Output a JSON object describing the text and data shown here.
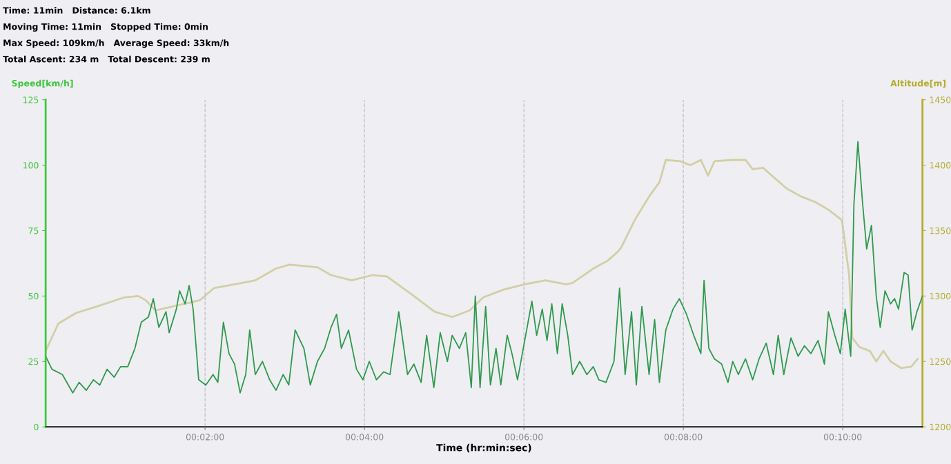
{
  "chart_data": {
    "type": "line",
    "annotations": [
      "Time: 11min   Distance: 6.1km",
      "Moving Time: 11min   Stopped Time: 0min",
      "Max Speed: 109km/h   Average Speed: 33km/h",
      "Total Ascent: 234 m   Total Descent: 239 m"
    ],
    "xlabel": "Time (hr:min:sec)",
    "ylabel": "Speed[km/h]",
    "y2label": "Altitude[m]",
    "xlim": [
      0,
      11
    ],
    "xticks": [
      {
        "value": 2,
        "label": "00:02:00"
      },
      {
        "value": 4,
        "label": "00:04:00"
      },
      {
        "value": 6,
        "label": "00:06:00"
      },
      {
        "value": 8,
        "label": "00:08:00"
      },
      {
        "value": 10,
        "label": "00:10:00"
      }
    ],
    "ylim": [
      0,
      125
    ],
    "yticks": [
      0,
      25,
      50,
      75,
      100,
      125
    ],
    "y2lim": [
      1200,
      1450
    ],
    "y2ticks": [
      1200,
      1250,
      1300,
      1350,
      1400,
      1450
    ],
    "grid": "x",
    "series": [
      {
        "color": "#d2cfa4",
        "axis": "y2",
        "x": [
          0,
          0.16,
          0.38,
          0.64,
          0.99,
          1.16,
          1.25,
          1.38,
          1.59,
          1.81,
          1.94,
          2.11,
          2.37,
          2.63,
          2.89,
          3.06,
          3.41,
          3.58,
          3.84,
          4.1,
          4.28,
          4.62,
          4.88,
          5.1,
          5.32,
          5.49,
          5.75,
          6.01,
          6.27,
          6.53,
          6.61,
          6.87,
          7.05,
          7.18,
          7.22,
          7.39,
          7.57,
          7.7,
          7.78,
          7.96,
          8.09,
          8.22,
          8.31,
          8.39,
          8.61,
          8.78,
          8.87,
          9.0,
          9.13,
          9.3,
          9.48,
          9.65,
          9.82,
          9.99,
          10.08,
          10.12,
          10.21,
          10.34,
          10.42,
          10.51,
          10.6,
          10.73,
          10.86,
          10.94
        ],
        "values": [
          1258,
          1279,
          1287,
          1292,
          1299,
          1300,
          1297,
          1289,
          1292,
          1295,
          1297,
          1306,
          1309,
          1312,
          1321,
          1324,
          1322,
          1316,
          1312,
          1316,
          1315,
          1300,
          1288,
          1284,
          1289,
          1299,
          1305,
          1309,
          1312,
          1309,
          1310,
          1321,
          1327,
          1334,
          1337,
          1358,
          1376,
          1387,
          1404,
          1403,
          1400,
          1404,
          1392,
          1403,
          1404,
          1404,
          1397,
          1398,
          1391,
          1382,
          1376,
          1372,
          1366,
          1358,
          1316,
          1268,
          1261,
          1258,
          1250,
          1258,
          1250,
          1245,
          1246,
          1252
        ]
      },
      {
        "color": "#2e9a4c",
        "x": [
          0,
          0.08,
          0.21,
          0.34,
          0.42,
          0.51,
          0.6,
          0.68,
          0.77,
          0.86,
          0.94,
          1.03,
          1.12,
          1.2,
          1.29,
          1.35,
          1.42,
          1.51,
          1.55,
          1.64,
          1.68,
          1.75,
          1.8,
          1.85,
          1.92,
          2.01,
          2.1,
          2.16,
          2.23,
          2.3,
          2.37,
          2.44,
          2.51,
          2.56,
          2.63,
          2.72,
          2.81,
          2.89,
          2.98,
          3.05,
          3.13,
          3.24,
          3.32,
          3.41,
          3.5,
          3.58,
          3.65,
          3.71,
          3.8,
          3.9,
          3.98,
          4.06,
          4.15,
          4.24,
          4.32,
          4.43,
          4.54,
          4.62,
          4.71,
          4.78,
          4.87,
          4.95,
          5.04,
          5.1,
          5.19,
          5.27,
          5.34,
          5.39,
          5.45,
          5.52,
          5.58,
          5.65,
          5.71,
          5.79,
          5.85,
          5.92,
          6.01,
          6.1,
          6.16,
          6.23,
          6.29,
          6.35,
          6.42,
          6.48,
          6.55,
          6.61,
          6.7,
          6.79,
          6.87,
          6.94,
          7.03,
          7.13,
          7.2,
          7.27,
          7.35,
          7.41,
          7.48,
          7.57,
          7.64,
          7.7,
          7.78,
          7.87,
          7.95,
          8.04,
          8.13,
          8.22,
          8.26,
          8.32,
          8.39,
          8.48,
          8.56,
          8.62,
          8.69,
          8.78,
          8.87,
          8.95,
          9.04,
          9.13,
          9.19,
          9.26,
          9.35,
          9.44,
          9.52,
          9.6,
          9.69,
          9.77,
          9.82,
          9.9,
          9.97,
          10.03,
          10.1,
          10.14,
          10.19,
          10.25,
          10.3,
          10.36,
          10.42,
          10.47,
          10.53,
          10.6,
          10.65,
          10.7,
          10.77,
          10.82,
          10.87,
          10.93,
          11.0
        ],
        "values": [
          27,
          22,
          20,
          13,
          17,
          14,
          18,
          16,
          22,
          19,
          23,
          23,
          30,
          40,
          42,
          49,
          38,
          44,
          36,
          45,
          52,
          47,
          54,
          45,
          18,
          16,
          20,
          17,
          40,
          28,
          24,
          13,
          20,
          37,
          20,
          25,
          18,
          14,
          20,
          16,
          37,
          30,
          16,
          25,
          30,
          38,
          43,
          30,
          37,
          22,
          18,
          25,
          18,
          21,
          20,
          44,
          20,
          24,
          17,
          35,
          15,
          36,
          25,
          35,
          30,
          36,
          15,
          50,
          15,
          46,
          16,
          30,
          16,
          35,
          28,
          18,
          33,
          48,
          35,
          45,
          33,
          47,
          28,
          47,
          35,
          20,
          25,
          20,
          23,
          18,
          17,
          25,
          53,
          20,
          44,
          16,
          46,
          20,
          41,
          17,
          37,
          45,
          49,
          43,
          35,
          28,
          56,
          30,
          26,
          24,
          17,
          25,
          20,
          26,
          18,
          26,
          32,
          20,
          35,
          20,
          34,
          27,
          31,
          28,
          33,
          24,
          44,
          35,
          28,
          45,
          27,
          85,
          109,
          85,
          68,
          77,
          50,
          38,
          52,
          47,
          49,
          45,
          59,
          58,
          37,
          44,
          50
        ]
      }
    ]
  }
}
